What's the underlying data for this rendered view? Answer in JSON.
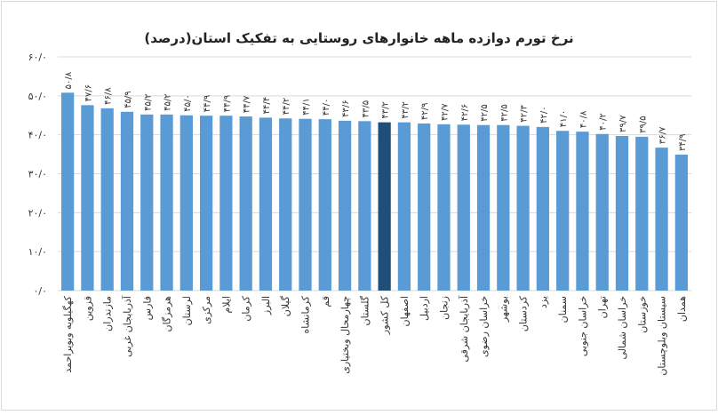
{
  "chart_data": {
    "type": "bar",
    "title": "نرخ تورم دوازده ماهه خانوارهای روستایی به تفکیک استان(درصد)",
    "categories": [
      "کهگیلویه وبویراحمد",
      "قزوین",
      "مازندران",
      "آذربایجان غربی",
      "فارس",
      "هرمزگان",
      "لرستان",
      "مرکزی",
      "ایلام",
      "کرمان",
      "البرز",
      "گیلان",
      "کرمانشاه",
      "قم",
      "چهارمحال وبختیاری",
      "گلستان",
      "کل کشور",
      "اصفهان",
      "اردبیل",
      "زنجان",
      "آذربایجان شرقی",
      "خراسان رضوی",
      "بوشهر",
      "کردستان",
      "یزد",
      "سمنان",
      "خراسان جنوبی",
      "تهران",
      "خراسان شمالی",
      "خوزستان",
      "سیستان وبلوچستان",
      "همدان"
    ],
    "values": [
      50.8,
      47.6,
      46.8,
      45.9,
      45.2,
      45.2,
      45.0,
      44.9,
      44.9,
      44.7,
      44.4,
      44.2,
      44.1,
      44.0,
      43.6,
      43.5,
      43.2,
      43.2,
      42.9,
      42.7,
      42.6,
      42.5,
      42.5,
      42.3,
      42.0,
      41.0,
      40.8,
      40.2,
      39.7,
      39.5,
      36.7,
      34.9
    ],
    "value_labels": [
      "۵۰/۸",
      "۴۷/۶",
      "۴۶/۸",
      "۴۵/۹",
      "۴۵/۲",
      "۴۵/۲",
      "۴۵/۰",
      "۴۴/۹",
      "۴۴/۹",
      "۴۴/۷",
      "۴۴/۴",
      "۴۴/۲",
      "۴۴/۱",
      "۴۴/۰",
      "۴۳/۶",
      "۴۳/۵",
      "۴۳/۲",
      "۴۳/۲",
      "۴۲/۹",
      "۴۲/۷",
      "۴۲/۶",
      "۴۲/۵",
      "۴۲/۵",
      "۴۲/۳",
      "۴۲/۰",
      "۴۱/۰",
      "۴۰/۸",
      "۴۰/۲",
      "۳۹/۷",
      "۳۹/۵",
      "۳۶/۷",
      "۳۴/۹"
    ],
    "colors": [
      "#5b9bd5",
      "#5b9bd5",
      "#5b9bd5",
      "#5b9bd5",
      "#5b9bd5",
      "#5b9bd5",
      "#5b9bd5",
      "#5b9bd5",
      "#5b9bd5",
      "#5b9bd5",
      "#5b9bd5",
      "#5b9bd5",
      "#5b9bd5",
      "#5b9bd5",
      "#5b9bd5",
      "#5b9bd5",
      "#1f4e79",
      "#5b9bd5",
      "#5b9bd5",
      "#5b9bd5",
      "#5b9bd5",
      "#5b9bd5",
      "#5b9bd5",
      "#5b9bd5",
      "#5b9bd5",
      "#5b9bd5",
      "#5b9bd5",
      "#5b9bd5",
      "#5b9bd5",
      "#5b9bd5",
      "#5b9bd5",
      "#5b9bd5"
    ],
    "ylim": [
      0,
      60
    ],
    "yticks": [
      {
        "value": 0,
        "label": "۰/۰"
      },
      {
        "value": 10,
        "label": "۱۰/۰"
      },
      {
        "value": 20,
        "label": "۲۰/۰"
      },
      {
        "value": 30,
        "label": "۳۰/۰"
      },
      {
        "value": 40,
        "label": "۴۰/۰"
      },
      {
        "value": 50,
        "label": "۵۰/۰"
      },
      {
        "value": 60,
        "label": "۶۰/۰"
      }
    ],
    "grid": true
  }
}
